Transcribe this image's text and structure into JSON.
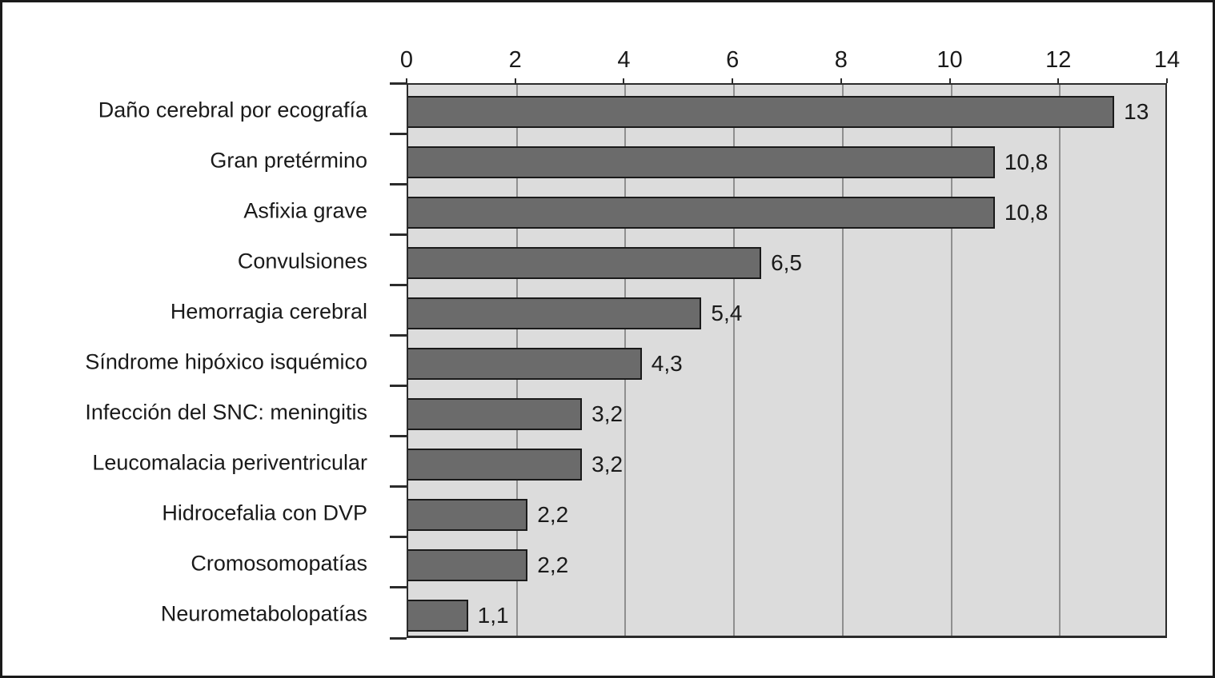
{
  "chart_data": {
    "type": "bar",
    "orientation": "horizontal",
    "title": "",
    "xlabel": "",
    "ylabel": "",
    "categories": [
      "Daño cerebral por ecografía",
      "Gran pretérmino",
      "Asfixia grave",
      "Convulsiones",
      "Hemorragia cerebral",
      "Síndrome hipóxico isquémico",
      "Infección del SNC: meningitis",
      "Leucomalacia periventricular",
      "Hidrocefalia con DVP",
      "Cromosomopatías",
      "Neurometabolopatías"
    ],
    "values": [
      13,
      10.8,
      10.8,
      6.5,
      5.4,
      4.3,
      3.2,
      3.2,
      2.2,
      2.2,
      1.1
    ],
    "value_labels": [
      "13",
      "10,8",
      "10,8",
      "6,5",
      "5,4",
      "4,3",
      "3,2",
      "3,2",
      "2,2",
      "2,2",
      "1,1"
    ],
    "x_ticks": [
      0,
      2,
      4,
      6,
      8,
      10,
      12,
      14
    ],
    "xlim": [
      0,
      14
    ],
    "grid": true,
    "legend": false,
    "axis_position": "top",
    "colors": {
      "bar_fill": "#6b6b6b",
      "bar_border": "#1a1a1a",
      "plot_background": "#dcdcdc",
      "gridline": "#8f8f8f",
      "axis_border": "#2b2b2b",
      "tick_mark": "#2b2b2b",
      "text": "#1a1a1a",
      "frame_border": "#1a1a1a",
      "page_background": "#ffffff"
    }
  }
}
